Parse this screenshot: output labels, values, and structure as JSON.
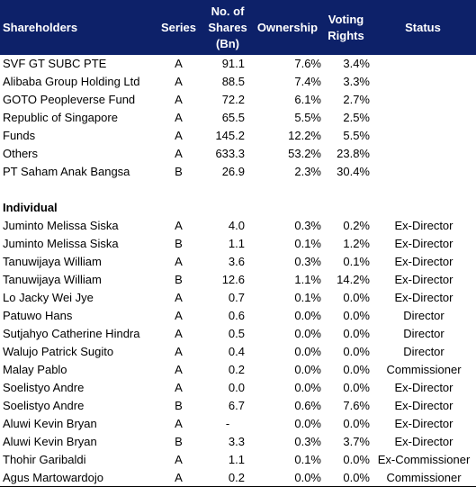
{
  "header": {
    "shareholders": "Shareholders",
    "series": "Series",
    "shares_line1": "No. of",
    "shares_line2": "Shares",
    "shares_line3": "(Bn)",
    "ownership": "Ownership",
    "voting_line1": "Voting",
    "voting_line2": "Rights",
    "status": "Status"
  },
  "institutional": [
    {
      "name": "SVF GT SUBC PTE",
      "series": "A",
      "shares": "91.1",
      "ownership": "7.6%",
      "voting": "3.4%",
      "status": ""
    },
    {
      "name": "Alibaba Group Holding Ltd",
      "series": "A",
      "shares": "88.5",
      "ownership": "7.4%",
      "voting": "3.3%",
      "status": ""
    },
    {
      "name": "GOTO Peopleverse Fund",
      "series": "A",
      "shares": "72.2",
      "ownership": "6.1%",
      "voting": "2.7%",
      "status": ""
    },
    {
      "name": "Republic of Singapore",
      "series": "A",
      "shares": "65.5",
      "ownership": "5.5%",
      "voting": "2.5%",
      "status": ""
    },
    {
      "name": "Funds",
      "series": "A",
      "shares": "145.2",
      "ownership": "12.2%",
      "voting": "5.5%",
      "status": ""
    },
    {
      "name": "Others",
      "series": "A",
      "shares": "633.3",
      "ownership": "53.2%",
      "voting": "23.8%",
      "status": ""
    },
    {
      "name": "PT Saham Anak Bangsa",
      "series": "B",
      "shares": "26.9",
      "ownership": "2.3%",
      "voting": "30.4%",
      "status": ""
    }
  ],
  "individual_title": "Individual",
  "individual": [
    {
      "name": "Juminto Melissa Siska",
      "series": "A",
      "shares": "4.0",
      "ownership": "0.3%",
      "voting": "0.2%",
      "status": "Ex-Director"
    },
    {
      "name": "Juminto Melissa Siska",
      "series": "B",
      "shares": "1.1",
      "ownership": "0.1%",
      "voting": "1.2%",
      "status": "Ex-Director"
    },
    {
      "name": "Tanuwijaya William",
      "series": "A",
      "shares": "3.6",
      "ownership": "0.3%",
      "voting": "0.1%",
      "status": "Ex-Director"
    },
    {
      "name": "Tanuwijaya William",
      "series": "B",
      "shares": "12.6",
      "ownership": "1.1%",
      "voting": "14.2%",
      "status": "Ex-Director"
    },
    {
      "name": "Lo Jacky Wei Jye",
      "series": "A",
      "shares": "0.7",
      "ownership": "0.1%",
      "voting": "0.0%",
      "status": "Ex-Director"
    },
    {
      "name": "Patuwo Hans",
      "series": "A",
      "shares": "0.6",
      "ownership": "0.0%",
      "voting": "0.0%",
      "status": "Director"
    },
    {
      "name": "Sutjahyo Catherine Hindra",
      "series": "A",
      "shares": "0.5",
      "ownership": "0.0%",
      "voting": "0.0%",
      "status": "Director"
    },
    {
      "name": "Walujo Patrick Sugito",
      "series": "A",
      "shares": "0.4",
      "ownership": "0.0%",
      "voting": "0.0%",
      "status": "Director"
    },
    {
      "name": "Malay Pablo",
      "series": "A",
      "shares": "0.2",
      "ownership": "0.0%",
      "voting": "0.0%",
      "status": "Commissioner"
    },
    {
      "name": "Soelistyo Andre",
      "series": "A",
      "shares": "0.0",
      "ownership": "0.0%",
      "voting": "0.0%",
      "status": "Ex-Director"
    },
    {
      "name": "Soelistyo Andre",
      "series": "B",
      "shares": "6.7",
      "ownership": "0.6%",
      "voting": "7.6%",
      "status": "Ex-Director"
    },
    {
      "name": "Aluwi Kevin Bryan",
      "series": "A",
      "shares": "-",
      "ownership": "0.0%",
      "voting": "0.0%",
      "status": "Ex-Director"
    },
    {
      "name": "Aluwi Kevin Bryan",
      "series": "B",
      "shares": "3.3",
      "ownership": "0.3%",
      "voting": "3.7%",
      "status": "Ex-Director"
    },
    {
      "name": "Thohir Garibaldi",
      "series": "A",
      "shares": "1.1",
      "ownership": "0.1%",
      "voting": "0.0%",
      "status": "Ex-Commissioner"
    },
    {
      "name": "Agus Martowardojo",
      "series": "A",
      "shares": "0.2",
      "ownership": "0.0%",
      "voting": "0.0%",
      "status": "Commissioner"
    }
  ]
}
